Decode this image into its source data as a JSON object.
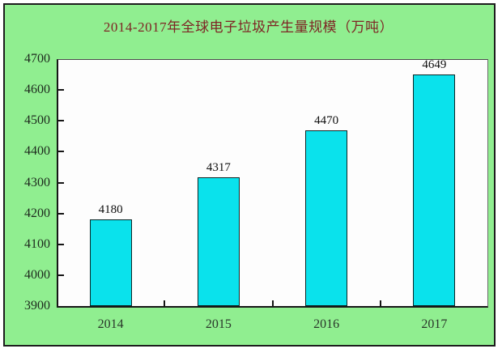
{
  "panel": {
    "background_color": "#90ee90",
    "border_color": "#1d1d1d",
    "plot_background_color": "#fdfdfd"
  },
  "chart_data": {
    "type": "bar",
    "title": "2014-2017年全球电子垃圾产生量规模（万吨）",
    "title_color": "#7e2424",
    "categories": [
      "2014",
      "2015",
      "2016",
      "2017"
    ],
    "values": [
      4180,
      4317,
      4470,
      4649
    ],
    "value_labels": [
      "4180",
      "4317",
      "4470",
      "4649"
    ],
    "ylim": [
      3900,
      4700
    ],
    "ytick_step": 100,
    "yticks": [
      "3900",
      "4000",
      "4100",
      "4200",
      "4300",
      "4400",
      "4500",
      "4600",
      "4700"
    ],
    "bar_color": "#0ae2ec",
    "bar_border_color": "#0b2626",
    "grid": false,
    "legend_position": "none",
    "xlabel": "",
    "ylabel": ""
  }
}
